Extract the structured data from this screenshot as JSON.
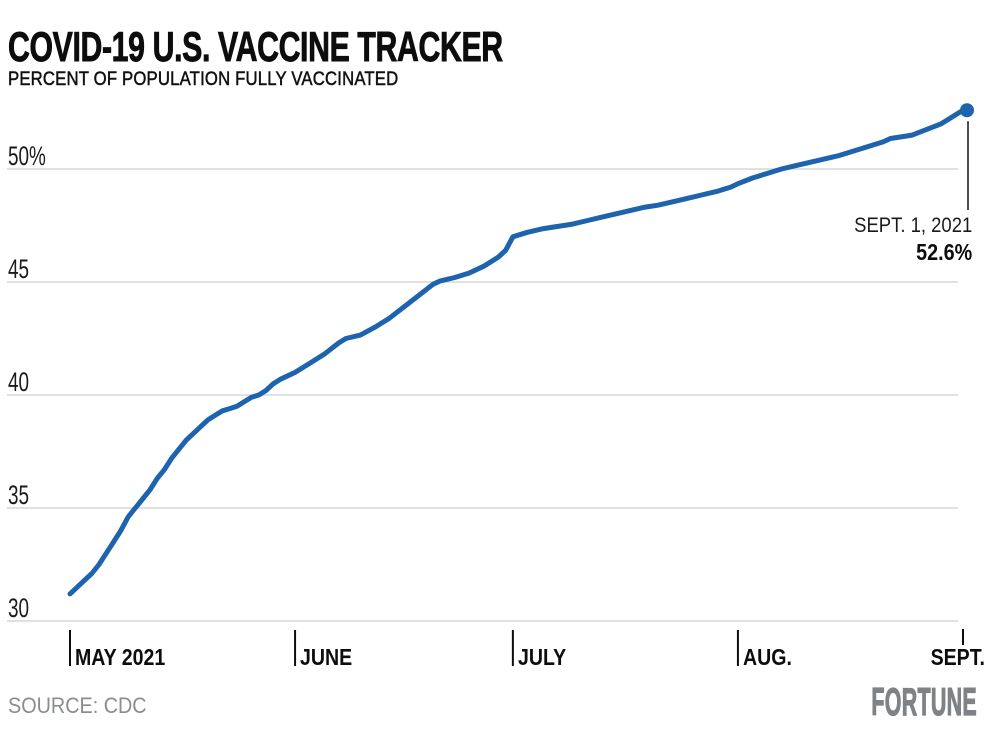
{
  "header": {
    "title": "COVID-19 U.S. VACCINE TRACKER",
    "subtitle": "PERCENT OF POPULATION FULLY VACCINATED"
  },
  "annotation": {
    "date": "SEPT. 1, 2021",
    "value": "52.6%"
  },
  "footer": {
    "source": "SOURCE: CDC",
    "brand": "FORTUNE"
  },
  "chart_data": {
    "type": "line",
    "title": "COVID-19 U.S. VACCINE TRACKER",
    "subtitle": "PERCENT OF POPULATION FULLY VACCINATED",
    "x_unit": "days since May 1, 2021",
    "xlim": [
      0,
      123
    ],
    "ylim": [
      30,
      53.5
    ],
    "grid": true,
    "legend": "none",
    "x_ticks": [
      {
        "label": "MAY 2021",
        "day": 0
      },
      {
        "label": "JUNE",
        "day": 31
      },
      {
        "label": "JULY",
        "day": 61
      },
      {
        "label": "AUG.",
        "day": 92
      },
      {
        "label": "SEPT.",
        "day": 123
      }
    ],
    "y_ticks": [
      {
        "label": "30",
        "value": 30
      },
      {
        "label": "35",
        "value": 35
      },
      {
        "label": "40",
        "value": 40
      },
      {
        "label": "45",
        "value": 45
      },
      {
        "label": "50%",
        "value": 50
      }
    ],
    "series": [
      {
        "name": "Percent of U.S. population fully vaccinated",
        "points": [
          [
            0,
            31.2
          ],
          [
            1,
            31.5
          ],
          [
            2,
            31.8
          ],
          [
            3,
            32.1
          ],
          [
            4,
            32.5
          ],
          [
            5,
            33.0
          ],
          [
            6,
            33.5
          ],
          [
            7,
            34.0
          ],
          [
            8,
            34.6
          ],
          [
            9,
            35.0
          ],
          [
            10,
            35.4
          ],
          [
            11,
            35.8
          ],
          [
            12,
            36.3
          ],
          [
            13,
            36.7
          ],
          [
            14,
            37.2
          ],
          [
            15,
            37.6
          ],
          [
            16,
            38.0
          ],
          [
            17,
            38.3
          ],
          [
            18,
            38.6
          ],
          [
            19,
            38.9
          ],
          [
            20,
            39.1
          ],
          [
            21,
            39.3
          ],
          [
            22,
            39.4
          ],
          [
            23,
            39.5
          ],
          [
            24,
            39.7
          ],
          [
            25,
            39.9
          ],
          [
            26,
            40.0
          ],
          [
            27,
            40.2
          ],
          [
            28,
            40.5
          ],
          [
            29,
            40.7
          ],
          [
            30,
            40.85
          ],
          [
            31,
            41.0
          ],
          [
            33,
            41.4
          ],
          [
            35,
            41.8
          ],
          [
            37,
            42.3
          ],
          [
            38,
            42.5
          ],
          [
            40,
            42.65
          ],
          [
            42,
            43.0
          ],
          [
            44,
            43.4
          ],
          [
            46,
            43.9
          ],
          [
            48,
            44.4
          ],
          [
            50,
            44.9
          ],
          [
            51,
            45.05
          ],
          [
            53,
            45.2
          ],
          [
            55,
            45.4
          ],
          [
            57,
            45.7
          ],
          [
            59,
            46.1
          ],
          [
            60,
            46.4
          ],
          [
            61,
            47.0
          ],
          [
            63,
            47.2
          ],
          [
            65,
            47.35
          ],
          [
            67,
            47.45
          ],
          [
            69,
            47.55
          ],
          [
            71,
            47.7
          ],
          [
            73,
            47.85
          ],
          [
            75,
            48.0
          ],
          [
            77,
            48.15
          ],
          [
            79,
            48.3
          ],
          [
            81,
            48.4
          ],
          [
            83,
            48.55
          ],
          [
            85,
            48.7
          ],
          [
            87,
            48.85
          ],
          [
            89,
            49.0
          ],
          [
            91,
            49.2
          ],
          [
            92,
            49.35
          ],
          [
            94,
            49.6
          ],
          [
            96,
            49.8
          ],
          [
            98,
            50.0
          ],
          [
            100,
            50.15
          ],
          [
            102,
            50.3
          ],
          [
            104,
            50.45
          ],
          [
            106,
            50.6
          ],
          [
            108,
            50.8
          ],
          [
            110,
            51.0
          ],
          [
            112,
            51.2
          ],
          [
            113,
            51.35
          ],
          [
            114,
            51.4
          ],
          [
            116,
            51.5
          ],
          [
            118,
            51.75
          ],
          [
            120,
            52.0
          ],
          [
            121,
            52.2
          ],
          [
            122,
            52.4
          ],
          [
            123,
            52.6
          ]
        ]
      }
    ],
    "endpoint": {
      "day": 123,
      "value": 52.6,
      "label_date": "SEPT. 1, 2021",
      "label_value": "52.6%"
    },
    "colors": {
      "line": "#1e63ae",
      "grid": "#d7d7d7",
      "text": "#111111",
      "muted": "#8a8d90"
    }
  }
}
